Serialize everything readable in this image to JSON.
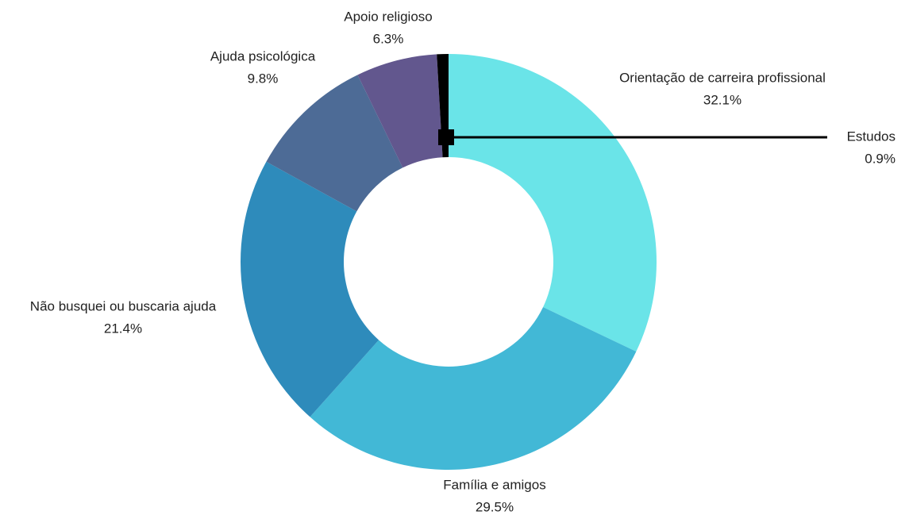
{
  "chart_data": {
    "type": "donut",
    "categories": [
      "Orientação de carreira profissional",
      "Família e amigos",
      "Não busquei ou buscaria ajuda",
      "Ajuda psicológica",
      "Apoio religioso",
      "Estudos"
    ],
    "values": [
      32.1,
      29.5,
      21.4,
      9.8,
      6.3,
      0.9
    ],
    "value_labels": [
      "32.1%",
      "29.5%",
      "21.4%",
      "9.8%",
      "6.3%",
      "0.9%"
    ],
    "colors": [
      "#6ae4e8",
      "#42b8d6",
      "#2e8bbb",
      "#4d6b96",
      "#62578e",
      "#000000"
    ]
  }
}
